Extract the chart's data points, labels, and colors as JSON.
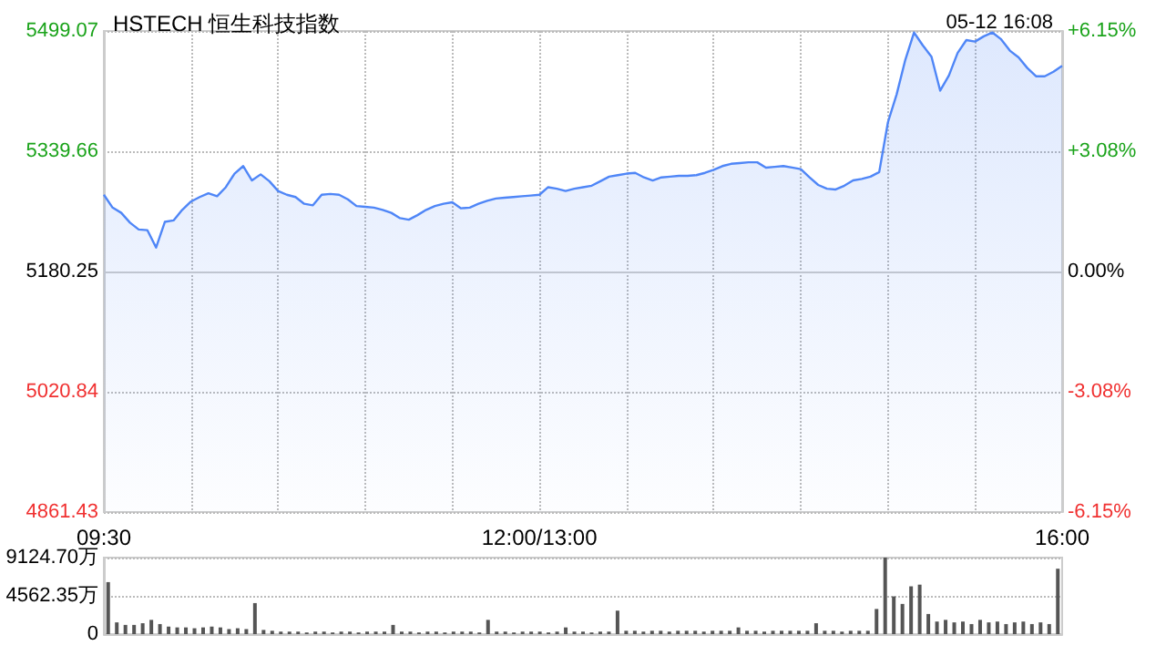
{
  "chart_data": [
    {
      "type": "area",
      "title": "HSTECH 恒生科技指数",
      "subtitle": "05-12 16:08",
      "color": "#4f86f7",
      "marker": "none",
      "grid": true,
      "categories": [
        "09:30",
        null,
        null,
        null,
        null,
        null,
        null,
        null,
        null,
        null,
        null,
        null,
        null,
        null,
        null,
        null,
        null,
        null,
        null,
        null,
        null,
        null,
        null,
        null,
        null,
        null,
        null,
        null,
        null,
        null,
        null,
        null,
        null,
        null,
        null,
        null,
        null,
        null,
        null,
        null,
        null,
        null,
        null,
        null,
        null,
        null,
        null,
        null,
        null,
        null,
        "12:00/13:00",
        null,
        null,
        null,
        null,
        null,
        null,
        null,
        null,
        null,
        null,
        null,
        null,
        null,
        null,
        null,
        null,
        null,
        null,
        null,
        null,
        null,
        null,
        null,
        null,
        null,
        null,
        null,
        null,
        null,
        null,
        null,
        null,
        null,
        null,
        null,
        null,
        null,
        null,
        null,
        null,
        null,
        null,
        null,
        null,
        null,
        null,
        null,
        null,
        null,
        null,
        null,
        null,
        null,
        null,
        null,
        null,
        null,
        null,
        null,
        "16:00"
      ],
      "values": [
        5282,
        5265,
        5258,
        5245,
        5236,
        5235,
        5212,
        5246,
        5248,
        5262,
        5273,
        5279,
        5284,
        5280,
        5292,
        5310,
        5320,
        5301,
        5309,
        5300,
        5287,
        5282,
        5279,
        5270,
        5268,
        5282,
        5283,
        5282,
        5276,
        5267,
        5266,
        5265,
        5262,
        5258,
        5251,
        5249,
        5255,
        5262,
        5267,
        5270,
        5272,
        5264,
        5265,
        5270,
        5274,
        5277,
        5278,
        5279,
        5280,
        5281,
        5282,
        5292,
        5290,
        5287,
        5290,
        5292,
        5294,
        5300,
        5306,
        5308,
        5310,
        5311,
        5305,
        5301,
        5305,
        5306,
        5307,
        5307,
        5308,
        5311,
        5315,
        5320,
        5323,
        5324,
        5325,
        5325,
        5318,
        5319,
        5320,
        5318,
        5316,
        5305,
        5295,
        5290,
        5289,
        5294,
        5301,
        5303,
        5306,
        5312,
        5378,
        5415,
        5461,
        5497,
        5480,
        5465,
        5420,
        5440,
        5470,
        5487,
        5485,
        5492,
        5497,
        5488,
        5473,
        5464,
        5450,
        5439,
        5439,
        5445,
        5453
      ],
      "ylim": [
        4861.43,
        5499.07
      ],
      "yticks": [
        4861.43,
        5020.84,
        5180.25,
        5339.66,
        5499.07
      ],
      "y2lim": [
        -6.15,
        6.15
      ],
      "y2ticks": [
        {
          "value": -6.15,
          "label": "-6.15%"
        },
        {
          "value": -3.08,
          "label": "-3.08%"
        },
        {
          "value": 0,
          "label": "0.00%"
        },
        {
          "value": 3.08,
          "label": "+3.08%"
        },
        {
          "value": 6.15,
          "label": "+6.15%"
        }
      ]
    },
    {
      "type": "bar",
      "color": "#555555",
      "grid": "y",
      "tick_labels": "y",
      "categories": [
        null,
        null,
        null,
        null,
        null,
        null,
        null,
        null,
        null,
        null,
        null,
        null,
        null,
        null,
        null,
        null,
        null,
        null,
        null,
        null,
        null,
        null,
        null,
        null,
        null,
        null,
        null,
        null,
        null,
        null,
        null,
        null,
        null,
        null,
        null,
        null,
        null,
        null,
        null,
        null,
        null,
        null,
        null,
        null,
        null,
        null,
        null,
        null,
        null,
        null,
        null,
        null,
        null,
        null,
        null,
        null,
        null,
        null,
        null,
        null,
        null,
        null,
        null,
        null,
        null,
        null,
        null,
        null,
        null,
        null,
        null,
        null,
        null,
        null,
        null,
        null,
        null,
        null,
        null,
        null,
        null,
        null,
        null,
        null,
        null,
        null,
        null,
        null,
        null,
        null,
        null,
        null,
        null,
        null,
        null,
        null,
        null,
        null,
        null,
        null,
        null,
        null,
        null,
        null,
        null,
        null,
        null,
        null,
        null,
        null,
        null
      ],
      "values": [
        6200,
        1400,
        1100,
        1100,
        1300,
        1700,
        1200,
        900,
        800,
        800,
        700,
        800,
        900,
        800,
        600,
        700,
        600,
        3700,
        500,
        400,
        300,
        300,
        300,
        200,
        300,
        300,
        200,
        300,
        300,
        200,
        300,
        300,
        300,
        1100,
        300,
        300,
        200,
        300,
        300,
        200,
        300,
        300,
        300,
        200,
        1700,
        300,
        300,
        200,
        300,
        300,
        300,
        200,
        300,
        800,
        300,
        300,
        200,
        300,
        300,
        2800,
        400,
        400,
        300,
        400,
        400,
        300,
        400,
        400,
        400,
        300,
        400,
        400,
        400,
        800,
        400,
        400,
        300,
        400,
        400,
        400,
        400,
        400,
        1300,
        400,
        400,
        300,
        400,
        400,
        400,
        3000,
        9124.7,
        4500,
        3600,
        5700,
        5900,
        2400,
        1500,
        1700,
        1400,
        1500,
        1200,
        1700,
        1400,
        1500,
        1200,
        1400,
        1500,
        1200,
        1400,
        1200,
        7800
      ],
      "ylim": [
        0,
        9124.7
      ],
      "yticks": [
        0,
        {
          "value": 4562.35,
          "label": "4562.35万"
        },
        {
          "value": 9124.7,
          "label": "9124.70万"
        }
      ]
    }
  ]
}
